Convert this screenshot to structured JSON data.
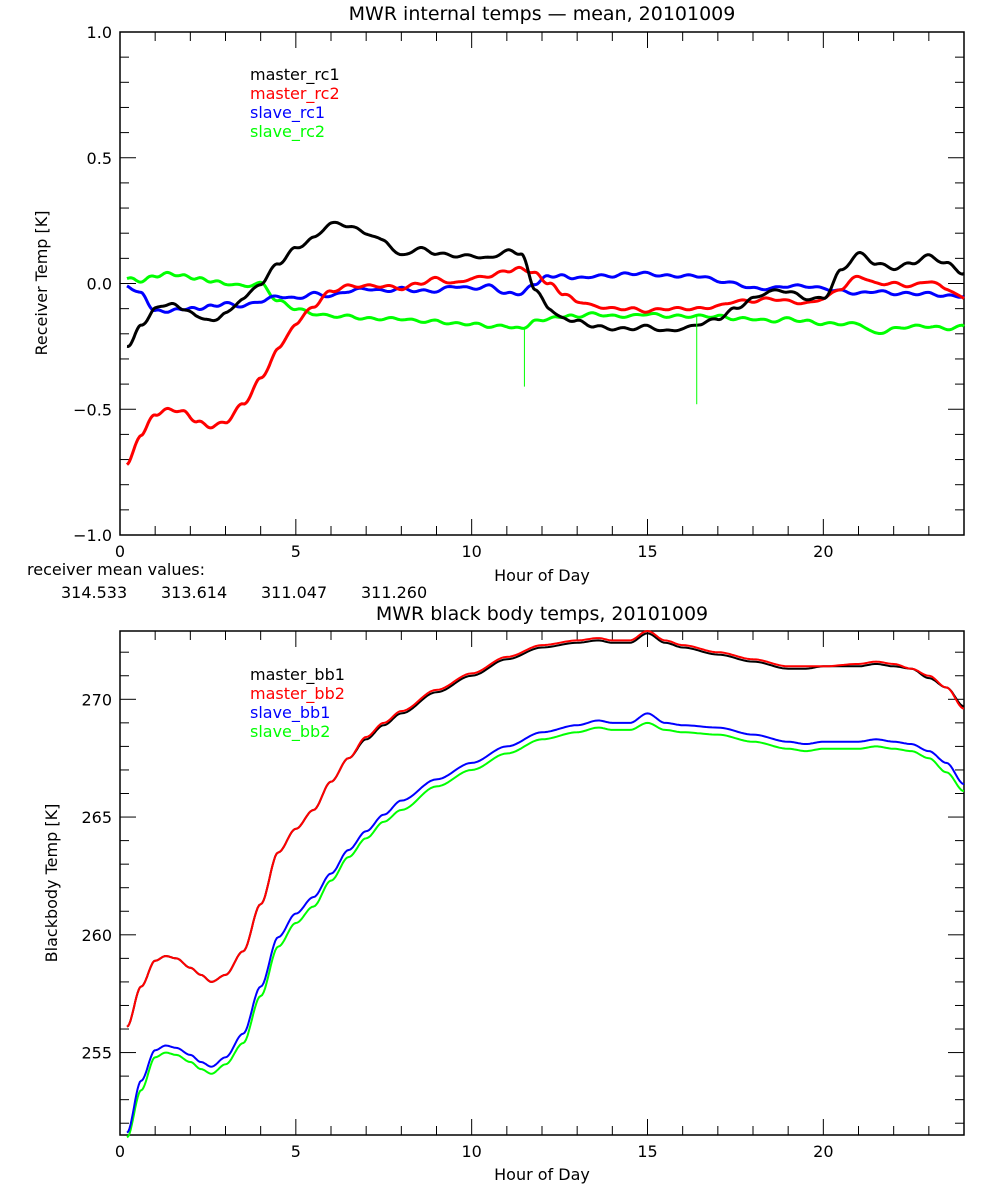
{
  "chart_data": [
    {
      "type": "line",
      "title": "MWR internal temps — mean, 20101009",
      "xlabel": "Hour of Day",
      "ylabel": "Receiver Temp [K]",
      "xlim": [
        0,
        24
      ],
      "ylim": [
        -1.0,
        1.0
      ],
      "xticks": [
        0,
        5,
        10,
        15,
        20
      ],
      "xtick_labels": [
        "0",
        "5",
        "10",
        "15",
        "20"
      ],
      "yticks": [
        -1.0,
        -0.5,
        0.0,
        0.5,
        1.0
      ],
      "ytick_labels": [
        "−1.0",
        "−0.5",
        "0.0",
        "0.5",
        "1.0"
      ],
      "x_minor_step": 1,
      "y_minor_step": 0.1,
      "grid": false,
      "legend_position": "top-left",
      "x": [
        0.2,
        0.6,
        1.0,
        1.4,
        1.8,
        2.2,
        2.6,
        3.0,
        3.5,
        4.0,
        4.5,
        5.0,
        5.5,
        6.0,
        6.5,
        7.0,
        7.5,
        8.0,
        8.5,
        9.0,
        9.5,
        10.0,
        10.5,
        11.0,
        11.4,
        11.8,
        12.2,
        12.6,
        13.0,
        13.5,
        14.0,
        14.5,
        15.0,
        15.5,
        16.0,
        16.5,
        17.0,
        17.5,
        18.0,
        18.5,
        19.0,
        19.5,
        20.0,
        20.5,
        21.0,
        21.5,
        22.0,
        22.5,
        23.0,
        23.5,
        24.0
      ],
      "series": [
        {
          "name": "master_rc1",
          "color": "#000000",
          "values": [
            -0.25,
            -0.17,
            -0.1,
            -0.08,
            -0.1,
            -0.13,
            -0.15,
            -0.12,
            -0.06,
            0.0,
            0.08,
            0.14,
            0.18,
            0.24,
            0.23,
            0.2,
            0.17,
            0.11,
            0.14,
            0.12,
            0.11,
            0.11,
            0.1,
            0.13,
            0.12,
            -0.02,
            -0.1,
            -0.14,
            -0.15,
            -0.17,
            -0.18,
            -0.18,
            -0.17,
            -0.19,
            -0.18,
            -0.16,
            -0.14,
            -0.1,
            -0.06,
            -0.03,
            -0.03,
            -0.06,
            -0.06,
            0.05,
            0.12,
            0.08,
            0.06,
            0.08,
            0.11,
            0.08,
            0.04
          ]
        },
        {
          "name": "master_rc2",
          "color": "#ff0000",
          "values": [
            -0.72,
            -0.6,
            -0.52,
            -0.5,
            -0.51,
            -0.55,
            -0.57,
            -0.55,
            -0.48,
            -0.38,
            -0.26,
            -0.16,
            -0.09,
            -0.03,
            -0.01,
            -0.01,
            -0.01,
            -0.02,
            0.0,
            0.02,
            0.0,
            0.02,
            0.03,
            0.05,
            0.06,
            0.04,
            0.0,
            -0.04,
            -0.07,
            -0.09,
            -0.1,
            -0.1,
            -0.11,
            -0.1,
            -0.1,
            -0.1,
            -0.09,
            -0.07,
            -0.07,
            -0.06,
            -0.07,
            -0.08,
            -0.06,
            -0.02,
            0.03,
            0.0,
            0.0,
            -0.01,
            0.01,
            -0.02,
            -0.06
          ]
        },
        {
          "name": "slave_rc1",
          "color": "#0000ff",
          "values": [
            -0.01,
            -0.04,
            -0.11,
            -0.11,
            -0.1,
            -0.1,
            -0.09,
            -0.08,
            -0.09,
            -0.07,
            -0.05,
            -0.06,
            -0.04,
            -0.05,
            -0.03,
            -0.02,
            -0.03,
            -0.02,
            -0.03,
            -0.03,
            -0.01,
            -0.02,
            -0.01,
            -0.04,
            -0.04,
            0.0,
            0.03,
            0.03,
            0.02,
            0.03,
            0.03,
            0.04,
            0.04,
            0.03,
            0.03,
            0.03,
            0.01,
            0.0,
            -0.02,
            -0.02,
            -0.01,
            -0.01,
            -0.02,
            -0.03,
            -0.04,
            -0.03,
            -0.04,
            -0.04,
            -0.04,
            -0.05,
            -0.05
          ]
        },
        {
          "name": "slave_rc2",
          "color": "#00ff00",
          "values": [
            0.02,
            0.01,
            0.03,
            0.04,
            0.03,
            0.02,
            0.01,
            0.0,
            -0.01,
            0.0,
            -0.07,
            -0.1,
            -0.12,
            -0.13,
            -0.13,
            -0.14,
            -0.14,
            -0.14,
            -0.15,
            -0.15,
            -0.16,
            -0.16,
            -0.17,
            -0.17,
            -0.18,
            -0.15,
            -0.14,
            -0.13,
            -0.13,
            -0.12,
            -0.13,
            -0.13,
            -0.12,
            -0.13,
            -0.13,
            -0.13,
            -0.13,
            -0.14,
            -0.14,
            -0.15,
            -0.14,
            -0.15,
            -0.16,
            -0.16,
            -0.16,
            -0.2,
            -0.18,
            -0.17,
            -0.17,
            -0.18,
            -0.17
          ]
        }
      ],
      "annotations": [
        {
          "series": "slave_rc2",
          "type": "spike",
          "x": 11.5,
          "y_top": -0.18,
          "y_bottom": -0.41
        },
        {
          "series": "slave_rc2",
          "type": "spike",
          "x": 16.4,
          "y_top": -0.13,
          "y_bottom": -0.48
        }
      ],
      "mean_values": {
        "label": "receiver mean values:",
        "values": [
          {
            "series": "master_rc1",
            "value": "314.533",
            "color": "#000000"
          },
          {
            "series": "master_rc2",
            "value": "313.614",
            "color": "#ff0000"
          },
          {
            "series": "slave_rc1",
            "value": "311.047",
            "color": "#0000ff"
          },
          {
            "series": "slave_rc2",
            "value": "311.260",
            "color": "#00ff00"
          }
        ]
      }
    },
    {
      "type": "line",
      "title": "MWR black body temps, 20101009",
      "xlabel": "Hour of Day",
      "ylabel": "Blackbody Temp [K]",
      "xlim": [
        0,
        24
      ],
      "ylim": [
        251.5,
        272.9
      ],
      "xticks": [
        0,
        5,
        10,
        15,
        20
      ],
      "xtick_labels": [
        "0",
        "5",
        "10",
        "15",
        "20"
      ],
      "yticks": [
        255,
        260,
        265,
        270
      ],
      "ytick_labels": [
        "255",
        "260",
        "265",
        "270"
      ],
      "x_minor_step": 1,
      "y_minor_step": 1,
      "grid": false,
      "legend_position": "top-left",
      "x": [
        0.2,
        0.6,
        1.0,
        1.3,
        1.6,
        2.0,
        2.3,
        2.6,
        3.0,
        3.5,
        4.0,
        4.5,
        5.0,
        5.5,
        6.0,
        6.5,
        7.0,
        7.5,
        8.0,
        9.0,
        10.0,
        11.0,
        12.0,
        13.0,
        13.6,
        14.0,
        14.5,
        15.0,
        15.5,
        16.0,
        17.0,
        18.0,
        19.0,
        19.5,
        20.0,
        21.0,
        21.5,
        22.0,
        22.5,
        23.0,
        23.5,
        24.0
      ],
      "series": [
        {
          "name": "master_bb1",
          "color": "#000000",
          "values": [
            256.1,
            257.8,
            258.9,
            259.1,
            259.0,
            258.6,
            258.3,
            258.0,
            258.3,
            259.3,
            261.3,
            263.5,
            264.5,
            265.3,
            266.5,
            267.5,
            268.3,
            268.9,
            269.4,
            270.3,
            271.0,
            271.7,
            272.2,
            272.4,
            272.5,
            272.4,
            272.4,
            272.8,
            272.4,
            272.2,
            271.9,
            271.6,
            271.3,
            271.3,
            271.4,
            271.4,
            271.5,
            271.4,
            271.3,
            270.9,
            270.5,
            269.7
          ]
        },
        {
          "name": "master_bb2",
          "color": "#ff0000",
          "values": [
            256.1,
            257.8,
            258.9,
            259.1,
            259.0,
            258.6,
            258.3,
            258.0,
            258.3,
            259.3,
            261.3,
            263.5,
            264.5,
            265.3,
            266.5,
            267.5,
            268.4,
            269.0,
            269.5,
            270.4,
            271.1,
            271.8,
            272.3,
            272.5,
            272.6,
            272.5,
            272.5,
            272.9,
            272.5,
            272.3,
            272.0,
            271.7,
            271.4,
            271.4,
            271.4,
            271.5,
            271.6,
            271.5,
            271.3,
            271.0,
            270.5,
            269.6
          ]
        },
        {
          "name": "slave_bb1",
          "color": "#0000ff",
          "values": [
            251.6,
            253.8,
            255.1,
            255.3,
            255.2,
            254.9,
            254.6,
            254.4,
            254.8,
            255.8,
            257.8,
            259.9,
            260.9,
            261.6,
            262.6,
            263.6,
            264.4,
            265.1,
            265.7,
            266.6,
            267.3,
            268.0,
            268.6,
            268.9,
            269.1,
            269.0,
            269.0,
            269.4,
            269.0,
            268.9,
            268.8,
            268.5,
            268.2,
            268.1,
            268.2,
            268.2,
            268.3,
            268.2,
            268.1,
            267.8,
            267.3,
            266.4
          ]
        },
        {
          "name": "slave_bb2",
          "color": "#00ff00",
          "values": [
            251.4,
            253.4,
            254.8,
            255.0,
            254.9,
            254.6,
            254.3,
            254.1,
            254.5,
            255.4,
            257.4,
            259.5,
            260.5,
            261.2,
            262.3,
            263.3,
            264.1,
            264.8,
            265.3,
            266.3,
            267.0,
            267.7,
            268.3,
            268.6,
            268.8,
            268.7,
            268.7,
            269.0,
            268.7,
            268.6,
            268.5,
            268.2,
            267.9,
            267.8,
            267.9,
            267.9,
            268.0,
            267.9,
            267.8,
            267.5,
            266.9,
            266.1
          ]
        }
      ]
    }
  ]
}
